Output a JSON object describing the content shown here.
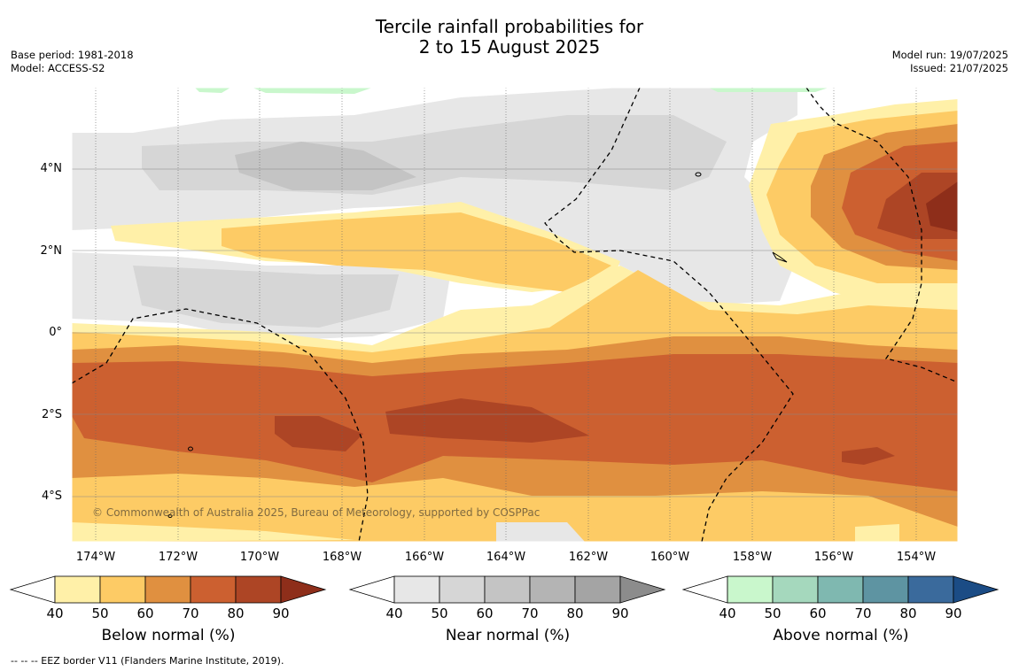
{
  "title_line1": "Tercile rainfall probabilities for",
  "title_line2": "2 to 15 August 2025",
  "meta_left": {
    "base_period": "Base period: 1981-2018",
    "model": "Model: ACCESS-S2"
  },
  "meta_right": {
    "model_run": "Model run: 19/07/2025",
    "issued": "Issued: 21/07/2025"
  },
  "lat_labels": [
    "4°N",
    "2°N",
    "0°",
    "2°S",
    "4°S"
  ],
  "lon_labels": [
    "174°W",
    "172°W",
    "170°W",
    "168°W",
    "166°W",
    "164°W",
    "162°W",
    "160°W",
    "158°W",
    "156°W",
    "154°W"
  ],
  "copyright": "© Commonwealth of Australia 2025, Bureau of Meteorology, supported by COSPPac",
  "colorbars": [
    {
      "title": "Below normal (%)",
      "ticks": [
        "40",
        "50",
        "60",
        "70",
        "80",
        "90"
      ],
      "colors": [
        "#fff0a8",
        "#fdcb65",
        "#e09040",
        "#cc6030",
        "#ad4525",
        "#8e2e1a"
      ]
    },
    {
      "title": "Near normal (%)",
      "ticks": [
        "40",
        "50",
        "60",
        "70",
        "80",
        "90"
      ],
      "colors": [
        "#e7e7e7",
        "#d6d6d6",
        "#c4c4c4",
        "#b4b4b4",
        "#a4a4a4",
        "#8c8c8c"
      ]
    },
    {
      "title": "Above normal (%)",
      "ticks": [
        "40",
        "50",
        "60",
        "70",
        "80",
        "90"
      ],
      "colors": [
        "#c9f7cc",
        "#a5d8bd",
        "#7fb8b0",
        "#5e94a2",
        "#3a6a9c",
        "#1b4c85"
      ]
    }
  ],
  "footnote": "--  --  -- EEZ border V11 (Flanders Marine Institute, 2019)."
}
